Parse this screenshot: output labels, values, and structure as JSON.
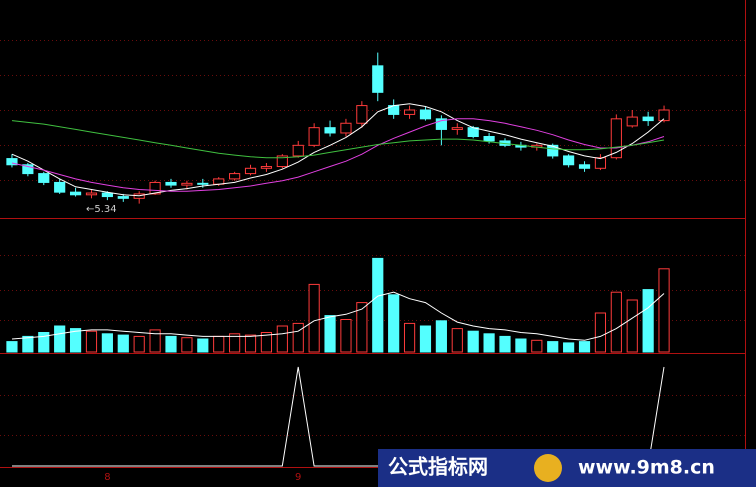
{
  "chart_data": [
    {
      "type": "candlestick",
      "annotation": "←5.34",
      "ylim": [
        5.2,
        7.6
      ],
      "up_color": "#ff3b3b",
      "down_color": "#54ffff",
      "open": [
        5.85,
        5.78,
        5.68,
        5.58,
        5.47,
        5.44,
        5.46,
        5.42,
        5.4,
        5.45,
        5.58,
        5.55,
        5.57,
        5.56,
        5.62,
        5.68,
        5.74,
        5.76,
        5.88,
        6.0,
        6.2,
        6.14,
        6.25,
        6.9,
        6.45,
        6.35,
        6.4,
        6.3,
        6.18,
        6.2,
        6.1,
        6.05,
        6.0,
        5.98,
        6.0,
        5.88,
        5.78,
        5.74,
        5.86,
        6.22,
        6.32,
        6.28
      ],
      "high": [
        5.9,
        5.8,
        5.7,
        5.62,
        5.52,
        5.5,
        5.48,
        5.45,
        5.48,
        5.6,
        5.62,
        5.6,
        5.62,
        5.64,
        5.7,
        5.78,
        5.8,
        5.9,
        6.05,
        6.25,
        6.28,
        6.3,
        6.5,
        7.05,
        6.52,
        6.45,
        6.44,
        6.34,
        6.25,
        6.22,
        6.14,
        6.08,
        6.04,
        6.02,
        6.02,
        5.9,
        5.82,
        5.9,
        6.35,
        6.4,
        6.38,
        6.45
      ],
      "low": [
        5.75,
        5.65,
        5.55,
        5.45,
        5.42,
        5.4,
        5.38,
        5.36,
        5.34,
        5.44,
        5.52,
        5.5,
        5.52,
        5.54,
        5.6,
        5.66,
        5.7,
        5.74,
        5.86,
        5.98,
        6.1,
        6.1,
        6.2,
        6.5,
        6.3,
        6.3,
        6.28,
        6.0,
        6.12,
        6.08,
        6.02,
        5.98,
        5.94,
        5.94,
        5.85,
        5.75,
        5.7,
        5.72,
        5.84,
        6.2,
        6.22,
        6.26
      ],
      "close": [
        5.78,
        5.68,
        5.58,
        5.47,
        5.44,
        5.46,
        5.42,
        5.4,
        5.45,
        5.58,
        5.55,
        5.57,
        5.56,
        5.62,
        5.68,
        5.74,
        5.76,
        5.88,
        6.0,
        6.2,
        6.14,
        6.25,
        6.45,
        6.6,
        6.35,
        6.4,
        6.3,
        6.18,
        6.2,
        6.1,
        6.05,
        6.0,
        5.98,
        6.0,
        5.88,
        5.78,
        5.74,
        5.86,
        6.3,
        6.32,
        6.28,
        6.4
      ],
      "series": [
        {
          "color": "#ffffff",
          "values": [
            5.9,
            5.82,
            5.72,
            5.62,
            5.53,
            5.5,
            5.47,
            5.44,
            5.43,
            5.46,
            5.49,
            5.51,
            5.54,
            5.56,
            5.58,
            5.63,
            5.67,
            5.73,
            5.81,
            5.92,
            6.0,
            6.09,
            6.21,
            6.38,
            6.45,
            6.47,
            6.44,
            6.38,
            6.28,
            6.2,
            6.16,
            6.12,
            6.07,
            6.03,
            5.99,
            5.93,
            5.88,
            5.85,
            5.92,
            6.02,
            6.15,
            6.3
          ]
        },
        {
          "color": "#e040e0",
          "values": [
            5.8,
            5.76,
            5.72,
            5.67,
            5.62,
            5.58,
            5.55,
            5.52,
            5.5,
            5.49,
            5.48,
            5.48,
            5.49,
            5.5,
            5.52,
            5.54,
            5.57,
            5.6,
            5.64,
            5.7,
            5.76,
            5.82,
            5.9,
            6.0,
            6.08,
            6.15,
            6.22,
            6.28,
            6.3,
            6.3,
            6.28,
            6.25,
            6.21,
            6.17,
            6.12,
            6.06,
            6.01,
            5.97,
            5.97,
            6.0,
            6.04,
            6.1
          ]
        },
        {
          "color": "#40c040",
          "values": [
            6.28,
            6.26,
            6.24,
            6.21,
            6.18,
            6.15,
            6.12,
            6.09,
            6.06,
            6.03,
            6.0,
            5.97,
            5.94,
            5.91,
            5.89,
            5.87,
            5.86,
            5.86,
            5.87,
            5.89,
            5.92,
            5.95,
            5.98,
            6.01,
            6.03,
            6.05,
            6.06,
            6.07,
            6.07,
            6.06,
            6.04,
            6.02,
            6.0,
            5.98,
            5.96,
            5.95,
            5.95,
            5.96,
            5.98,
            6.0,
            6.03,
            6.06
          ]
        }
      ]
    },
    {
      "type": "bar",
      "ylim": [
        0,
        100
      ],
      "values": [
        8,
        12,
        15,
        20,
        18,
        16,
        14,
        13,
        12,
        17,
        12,
        11,
        10,
        12,
        14,
        13,
        15,
        20,
        22,
        52,
        28,
        25,
        38,
        72,
        44,
        22,
        20,
        24,
        18,
        16,
        14,
        12,
        10,
        9,
        8,
        7,
        8,
        30,
        46,
        40,
        48,
        64
      ],
      "series": [
        {
          "color": "#ffffff",
          "values": [
            10,
            11,
            12,
            14,
            16,
            17,
            17,
            16,
            15,
            14,
            14,
            13,
            12,
            12,
            12,
            12,
            13,
            14,
            16,
            24,
            27,
            29,
            33,
            43,
            46,
            41,
            38,
            30,
            23,
            20,
            18,
            17,
            15,
            14,
            12,
            10,
            9,
            12,
            18,
            26,
            34,
            45
          ]
        }
      ]
    },
    {
      "type": "line",
      "ylim": [
        0,
        1
      ],
      "color": "#ffffff",
      "values": [
        0,
        0,
        0,
        0,
        0,
        0,
        0,
        0,
        0,
        0,
        0,
        0,
        0,
        0,
        0,
        0,
        0,
        0,
        1,
        0,
        0,
        0,
        0,
        0,
        0,
        0,
        0,
        0,
        0,
        0,
        0,
        0,
        0,
        0,
        0,
        0,
        0,
        0,
        0,
        0,
        0,
        1
      ],
      "categories": [
        null,
        null,
        null,
        null,
        null,
        null,
        "8",
        null,
        null,
        null,
        null,
        null,
        null,
        null,
        null,
        null,
        null,
        null,
        "9",
        null,
        null,
        null,
        null,
        null,
        null,
        null,
        null,
        null,
        null,
        null,
        null,
        null,
        null,
        null,
        null,
        null,
        null,
        null,
        null,
        null,
        null,
        null
      ]
    }
  ],
  "watermark": {
    "left": "公式指标网",
    "right": "www.9m8.cn"
  }
}
